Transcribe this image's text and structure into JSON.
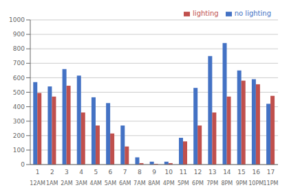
{
  "chart_data": {
    "type": "bar",
    "categories": [
      "1",
      "2",
      "3",
      "4",
      "5",
      "6",
      "7",
      "8",
      "9",
      "10",
      "11",
      "12",
      "13",
      "14",
      "15",
      "16",
      "17"
    ],
    "secondary_categories": [
      "12AM",
      "1AM",
      "2AM",
      "3AM",
      "4AM",
      "5AM",
      "6AM",
      "7AM",
      "8AM",
      "4PM",
      "5PM",
      "6PM",
      "7PM",
      "8PM",
      "9PM",
      "10PM",
      "11PM"
    ],
    "series": [
      {
        "name": "no lighting",
        "color": "#4472C4",
        "values": [
          570,
          540,
          660,
          615,
          465,
          425,
          270,
          50,
          20,
          20,
          185,
          530,
          750,
          840,
          650,
          590,
          420
        ]
      },
      {
        "name": "lighting",
        "color": "#C0504D",
        "values": [
          495,
          470,
          545,
          360,
          270,
          215,
          125,
          10,
          5,
          10,
          160,
          270,
          360,
          470,
          580,
          555,
          475
        ]
      }
    ],
    "ylim": [
      0,
      1000
    ],
    "yticks": [
      0,
      100,
      200,
      300,
      400,
      500,
      600,
      700,
      800,
      900,
      1000
    ],
    "grid": true,
    "legend": "upper right"
  }
}
